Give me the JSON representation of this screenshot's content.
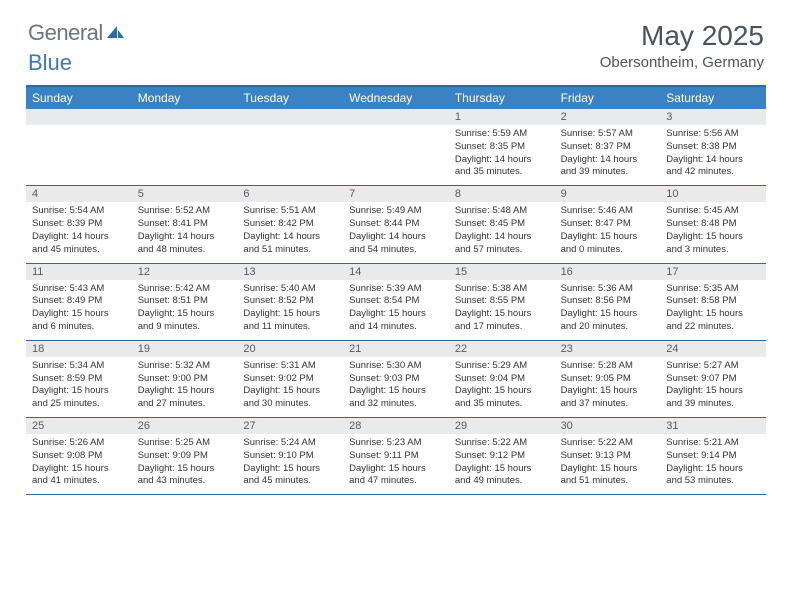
{
  "header": {
    "logo_general": "General",
    "logo_blue": "Blue",
    "month_title": "May 2025",
    "location": "Obersontheim, Germany"
  },
  "colors": {
    "header_bar": "#3a82c4",
    "rule": "#2b6aa8",
    "daynum_bg": "#e9eaec",
    "text": "#333333",
    "logo_gray": "#6b7583",
    "logo_blue": "#3a7ab8"
  },
  "weekdays": [
    "Sunday",
    "Monday",
    "Tuesday",
    "Wednesday",
    "Thursday",
    "Friday",
    "Saturday"
  ],
  "weeks": [
    [
      {
        "day": "",
        "sunrise": "",
        "sunset": "",
        "daylight1": "",
        "daylight2": ""
      },
      {
        "day": "",
        "sunrise": "",
        "sunset": "",
        "daylight1": "",
        "daylight2": ""
      },
      {
        "day": "",
        "sunrise": "",
        "sunset": "",
        "daylight1": "",
        "daylight2": ""
      },
      {
        "day": "",
        "sunrise": "",
        "sunset": "",
        "daylight1": "",
        "daylight2": ""
      },
      {
        "day": "1",
        "sunrise": "Sunrise: 5:59 AM",
        "sunset": "Sunset: 8:35 PM",
        "daylight1": "Daylight: 14 hours",
        "daylight2": "and 35 minutes."
      },
      {
        "day": "2",
        "sunrise": "Sunrise: 5:57 AM",
        "sunset": "Sunset: 8:37 PM",
        "daylight1": "Daylight: 14 hours",
        "daylight2": "and 39 minutes."
      },
      {
        "day": "3",
        "sunrise": "Sunrise: 5:56 AM",
        "sunset": "Sunset: 8:38 PM",
        "daylight1": "Daylight: 14 hours",
        "daylight2": "and 42 minutes."
      }
    ],
    [
      {
        "day": "4",
        "sunrise": "Sunrise: 5:54 AM",
        "sunset": "Sunset: 8:39 PM",
        "daylight1": "Daylight: 14 hours",
        "daylight2": "and 45 minutes."
      },
      {
        "day": "5",
        "sunrise": "Sunrise: 5:52 AM",
        "sunset": "Sunset: 8:41 PM",
        "daylight1": "Daylight: 14 hours",
        "daylight2": "and 48 minutes."
      },
      {
        "day": "6",
        "sunrise": "Sunrise: 5:51 AM",
        "sunset": "Sunset: 8:42 PM",
        "daylight1": "Daylight: 14 hours",
        "daylight2": "and 51 minutes."
      },
      {
        "day": "7",
        "sunrise": "Sunrise: 5:49 AM",
        "sunset": "Sunset: 8:44 PM",
        "daylight1": "Daylight: 14 hours",
        "daylight2": "and 54 minutes."
      },
      {
        "day": "8",
        "sunrise": "Sunrise: 5:48 AM",
        "sunset": "Sunset: 8:45 PM",
        "daylight1": "Daylight: 14 hours",
        "daylight2": "and 57 minutes."
      },
      {
        "day": "9",
        "sunrise": "Sunrise: 5:46 AM",
        "sunset": "Sunset: 8:47 PM",
        "daylight1": "Daylight: 15 hours",
        "daylight2": "and 0 minutes."
      },
      {
        "day": "10",
        "sunrise": "Sunrise: 5:45 AM",
        "sunset": "Sunset: 8:48 PM",
        "daylight1": "Daylight: 15 hours",
        "daylight2": "and 3 minutes."
      }
    ],
    [
      {
        "day": "11",
        "sunrise": "Sunrise: 5:43 AM",
        "sunset": "Sunset: 8:49 PM",
        "daylight1": "Daylight: 15 hours",
        "daylight2": "and 6 minutes."
      },
      {
        "day": "12",
        "sunrise": "Sunrise: 5:42 AM",
        "sunset": "Sunset: 8:51 PM",
        "daylight1": "Daylight: 15 hours",
        "daylight2": "and 9 minutes."
      },
      {
        "day": "13",
        "sunrise": "Sunrise: 5:40 AM",
        "sunset": "Sunset: 8:52 PM",
        "daylight1": "Daylight: 15 hours",
        "daylight2": "and 11 minutes."
      },
      {
        "day": "14",
        "sunrise": "Sunrise: 5:39 AM",
        "sunset": "Sunset: 8:54 PM",
        "daylight1": "Daylight: 15 hours",
        "daylight2": "and 14 minutes."
      },
      {
        "day": "15",
        "sunrise": "Sunrise: 5:38 AM",
        "sunset": "Sunset: 8:55 PM",
        "daylight1": "Daylight: 15 hours",
        "daylight2": "and 17 minutes."
      },
      {
        "day": "16",
        "sunrise": "Sunrise: 5:36 AM",
        "sunset": "Sunset: 8:56 PM",
        "daylight1": "Daylight: 15 hours",
        "daylight2": "and 20 minutes."
      },
      {
        "day": "17",
        "sunrise": "Sunrise: 5:35 AM",
        "sunset": "Sunset: 8:58 PM",
        "daylight1": "Daylight: 15 hours",
        "daylight2": "and 22 minutes."
      }
    ],
    [
      {
        "day": "18",
        "sunrise": "Sunrise: 5:34 AM",
        "sunset": "Sunset: 8:59 PM",
        "daylight1": "Daylight: 15 hours",
        "daylight2": "and 25 minutes."
      },
      {
        "day": "19",
        "sunrise": "Sunrise: 5:32 AM",
        "sunset": "Sunset: 9:00 PM",
        "daylight1": "Daylight: 15 hours",
        "daylight2": "and 27 minutes."
      },
      {
        "day": "20",
        "sunrise": "Sunrise: 5:31 AM",
        "sunset": "Sunset: 9:02 PM",
        "daylight1": "Daylight: 15 hours",
        "daylight2": "and 30 minutes."
      },
      {
        "day": "21",
        "sunrise": "Sunrise: 5:30 AM",
        "sunset": "Sunset: 9:03 PM",
        "daylight1": "Daylight: 15 hours",
        "daylight2": "and 32 minutes."
      },
      {
        "day": "22",
        "sunrise": "Sunrise: 5:29 AM",
        "sunset": "Sunset: 9:04 PM",
        "daylight1": "Daylight: 15 hours",
        "daylight2": "and 35 minutes."
      },
      {
        "day": "23",
        "sunrise": "Sunrise: 5:28 AM",
        "sunset": "Sunset: 9:05 PM",
        "daylight1": "Daylight: 15 hours",
        "daylight2": "and 37 minutes."
      },
      {
        "day": "24",
        "sunrise": "Sunrise: 5:27 AM",
        "sunset": "Sunset: 9:07 PM",
        "daylight1": "Daylight: 15 hours",
        "daylight2": "and 39 minutes."
      }
    ],
    [
      {
        "day": "25",
        "sunrise": "Sunrise: 5:26 AM",
        "sunset": "Sunset: 9:08 PM",
        "daylight1": "Daylight: 15 hours",
        "daylight2": "and 41 minutes."
      },
      {
        "day": "26",
        "sunrise": "Sunrise: 5:25 AM",
        "sunset": "Sunset: 9:09 PM",
        "daylight1": "Daylight: 15 hours",
        "daylight2": "and 43 minutes."
      },
      {
        "day": "27",
        "sunrise": "Sunrise: 5:24 AM",
        "sunset": "Sunset: 9:10 PM",
        "daylight1": "Daylight: 15 hours",
        "daylight2": "and 45 minutes."
      },
      {
        "day": "28",
        "sunrise": "Sunrise: 5:23 AM",
        "sunset": "Sunset: 9:11 PM",
        "daylight1": "Daylight: 15 hours",
        "daylight2": "and 47 minutes."
      },
      {
        "day": "29",
        "sunrise": "Sunrise: 5:22 AM",
        "sunset": "Sunset: 9:12 PM",
        "daylight1": "Daylight: 15 hours",
        "daylight2": "and 49 minutes."
      },
      {
        "day": "30",
        "sunrise": "Sunrise: 5:22 AM",
        "sunset": "Sunset: 9:13 PM",
        "daylight1": "Daylight: 15 hours",
        "daylight2": "and 51 minutes."
      },
      {
        "day": "31",
        "sunrise": "Sunrise: 5:21 AM",
        "sunset": "Sunset: 9:14 PM",
        "daylight1": "Daylight: 15 hours",
        "daylight2": "and 53 minutes."
      }
    ]
  ]
}
